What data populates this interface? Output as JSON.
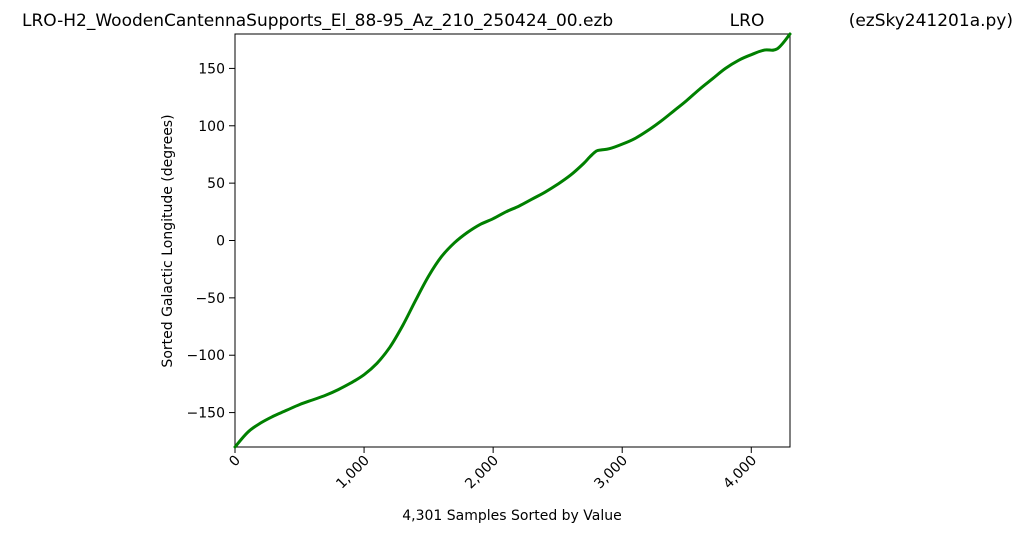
{
  "header": {
    "left_title": "LRO-H2_WoodenCantennaSupports_El_88-95_Az_210_250424_00.ezb",
    "center_title": "LRO",
    "right_title": "(ezSky241201a.py)"
  },
  "chart_data": {
    "type": "line",
    "xlabel": "4,301 Samples Sorted by Value",
    "ylabel": "Sorted Galactic Longitude (degrees)",
    "xlim": [
      0,
      4300
    ],
    "ylim": [
      -180,
      180
    ],
    "x_ticks": [
      0,
      1000,
      2000,
      3000,
      4000
    ],
    "x_tick_labels": [
      "0",
      "1,000",
      "2,000",
      "3,000",
      "4,000"
    ],
    "y_ticks": [
      150,
      100,
      50,
      0,
      -50,
      -100,
      -150
    ],
    "y_tick_labels": [
      "150",
      "100",
      "50",
      "0",
      "−50",
      "−100",
      "−150"
    ],
    "grid": false,
    "line_color": "#008000",
    "series": [
      {
        "x": [
          0,
          100,
          200,
          300,
          400,
          500,
          600,
          700,
          800,
          900,
          1000,
          1100,
          1200,
          1300,
          1400,
          1500,
          1600,
          1700,
          1800,
          1900,
          2000,
          2100,
          2200,
          2300,
          2400,
          2500,
          2600,
          2700,
          2750,
          2800,
          2840,
          2900,
          3000,
          3100,
          3200,
          3300,
          3400,
          3500,
          3600,
          3700,
          3800,
          3900,
          4000,
          4100,
          4200,
          4300
        ],
        "y": [
          -180,
          -167,
          -159,
          -153,
          -148,
          -143,
          -139,
          -135,
          -130,
          -124,
          -117,
          -107,
          -93,
          -74,
          -52,
          -31,
          -14,
          -2,
          7,
          14,
          19,
          25,
          30,
          36,
          42,
          49,
          57,
          67,
          73,
          78,
          79,
          80,
          84,
          89,
          96,
          104,
          113,
          122,
          132,
          141,
          150,
          157,
          162,
          166,
          167,
          180
        ]
      }
    ]
  }
}
